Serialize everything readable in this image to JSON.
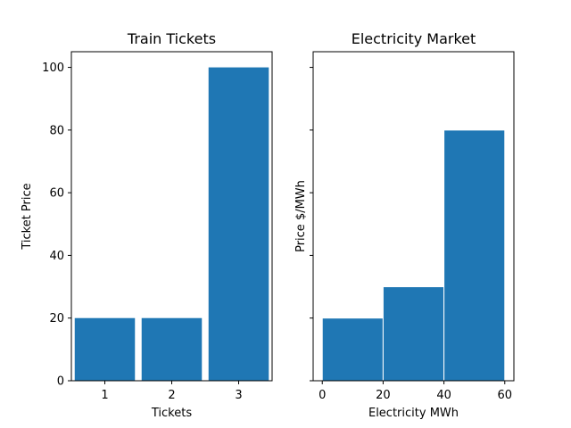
{
  "chart_data": [
    {
      "type": "bar",
      "title": "Train Tickets",
      "xlabel": "Tickets",
      "ylabel": "Ticket Price",
      "categories": [
        "1",
        "2",
        "3"
      ],
      "values": [
        20,
        20,
        100
      ],
      "xlim": [
        0.5,
        3.5
      ],
      "ylim": [
        0,
        105
      ],
      "xticks": [
        1,
        2,
        3
      ],
      "yticks": [
        0,
        20,
        40,
        60,
        80,
        100
      ],
      "grid": false,
      "bar_color": "#1f77b4"
    },
    {
      "type": "bar",
      "title": "Electricity Market",
      "xlabel": "Electricity MWh",
      "ylabel": "Price $/MWh",
      "bins": [
        {
          "x0": 0,
          "x1": 20,
          "value": 20
        },
        {
          "x0": 20,
          "x1": 40,
          "value": 30
        },
        {
          "x0": 40,
          "x1": 60,
          "value": 80
        }
      ],
      "xlim": [
        -3,
        63
      ],
      "ylim": [
        0,
        105
      ],
      "xticks": [
        0,
        20,
        40,
        60
      ],
      "yticks": [
        0,
        20,
        40,
        60,
        80,
        100
      ],
      "yticklabels_shown": false,
      "grid": false,
      "bar_color": "#1f77b4",
      "edge_color": "#ffffff"
    }
  ]
}
